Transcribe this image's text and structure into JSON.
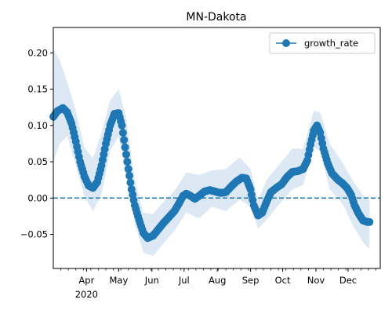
{
  "chart_data": {
    "type": "line",
    "title": "MN-Dakota",
    "xlabel": "",
    "ylabel": "",
    "xlim": [
      "2020-03-01",
      "2020-12-31"
    ],
    "ylim": [
      -0.097,
      0.235
    ],
    "y_ticks": [
      -0.05,
      0.0,
      0.05,
      0.1,
      0.15,
      0.2
    ],
    "y_tick_labels": [
      "−0.05",
      "0.00",
      "0.05",
      "0.10",
      "0.15",
      "0.20"
    ],
    "x_ticks": [
      {
        "date": "2020-04-01",
        "label": "Apr",
        "sublabel": "2020"
      },
      {
        "date": "2020-05-01",
        "label": "May",
        "sublabel": ""
      },
      {
        "date": "2020-06-01",
        "label": "Jun",
        "sublabel": ""
      },
      {
        "date": "2020-07-01",
        "label": "Jul",
        "sublabel": ""
      },
      {
        "date": "2020-08-01",
        "label": "Aug",
        "sublabel": ""
      },
      {
        "date": "2020-09-01",
        "label": "Sep",
        "sublabel": ""
      },
      {
        "date": "2020-10-01",
        "label": "Oct",
        "sublabel": ""
      },
      {
        "date": "2020-11-01",
        "label": "Nov",
        "sublabel": ""
      },
      {
        "date": "2020-12-01",
        "label": "Dec",
        "sublabel": ""
      }
    ],
    "legend": {
      "placement": "top-right",
      "entries": [
        "growth_rate"
      ]
    },
    "reference_line": {
      "y": 0.0,
      "style": "dashed"
    },
    "grid": false,
    "colors": {
      "series": "#1f77b4",
      "band": "#dce9f5"
    },
    "series": [
      {
        "name": "growth_rate",
        "points": [
          [
            "2020-03-01",
            0.112
          ],
          [
            "2020-03-05",
            0.12
          ],
          [
            "2020-03-10",
            0.124
          ],
          [
            "2020-03-14",
            0.118
          ],
          [
            "2020-03-18",
            0.103
          ],
          [
            "2020-03-22",
            0.078
          ],
          [
            "2020-03-26",
            0.05
          ],
          [
            "2020-03-30",
            0.03
          ],
          [
            "2020-04-03",
            0.017
          ],
          [
            "2020-04-07",
            0.014
          ],
          [
            "2020-04-11",
            0.022
          ],
          [
            "2020-04-15",
            0.045
          ],
          [
            "2020-04-19",
            0.075
          ],
          [
            "2020-04-23",
            0.1
          ],
          [
            "2020-04-27",
            0.116
          ],
          [
            "2020-05-01",
            0.117
          ],
          [
            "2020-05-04",
            0.1
          ],
          [
            "2020-05-07",
            0.07
          ],
          [
            "2020-05-10",
            0.04
          ],
          [
            "2020-05-13",
            0.012
          ],
          [
            "2020-05-16",
            -0.01
          ],
          [
            "2020-05-20",
            -0.03
          ],
          [
            "2020-05-24",
            -0.048
          ],
          [
            "2020-05-28",
            -0.055
          ],
          [
            "2020-06-02",
            -0.052
          ],
          [
            "2020-06-07",
            -0.043
          ],
          [
            "2020-06-12",
            -0.034
          ],
          [
            "2020-06-17",
            -0.026
          ],
          [
            "2020-06-22",
            -0.018
          ],
          [
            "2020-06-26",
            -0.008
          ],
          [
            "2020-06-30",
            0.003
          ],
          [
            "2020-07-03",
            0.006
          ],
          [
            "2020-07-07",
            0.003
          ],
          [
            "2020-07-11",
            -0.001
          ],
          [
            "2020-07-15",
            0.003
          ],
          [
            "2020-07-20",
            0.009
          ],
          [
            "2020-07-25",
            0.011
          ],
          [
            "2020-07-30",
            0.009
          ],
          [
            "2020-08-04",
            0.007
          ],
          [
            "2020-08-09",
            0.008
          ],
          [
            "2020-08-14",
            0.016
          ],
          [
            "2020-08-19",
            0.023
          ],
          [
            "2020-08-24",
            0.028
          ],
          [
            "2020-08-28",
            0.027
          ],
          [
            "2020-09-01",
            0.012
          ],
          [
            "2020-09-04",
            -0.01
          ],
          [
            "2020-09-08",
            -0.024
          ],
          [
            "2020-09-12",
            -0.02
          ],
          [
            "2020-09-16",
            -0.005
          ],
          [
            "2020-09-20",
            0.008
          ],
          [
            "2020-09-25",
            0.014
          ],
          [
            "2020-09-30",
            0.019
          ],
          [
            "2020-10-05",
            0.029
          ],
          [
            "2020-10-10",
            0.036
          ],
          [
            "2020-10-15",
            0.037
          ],
          [
            "2020-10-20",
            0.04
          ],
          [
            "2020-10-24",
            0.052
          ],
          [
            "2020-10-27",
            0.074
          ],
          [
            "2020-10-30",
            0.093
          ],
          [
            "2020-11-02",
            0.1
          ],
          [
            "2020-11-05",
            0.09
          ],
          [
            "2020-11-08",
            0.068
          ],
          [
            "2020-11-12",
            0.048
          ],
          [
            "2020-11-16",
            0.034
          ],
          [
            "2020-11-21",
            0.026
          ],
          [
            "2020-11-26",
            0.02
          ],
          [
            "2020-11-30",
            0.014
          ],
          [
            "2020-12-04",
            0.004
          ],
          [
            "2020-12-07",
            -0.01
          ],
          [
            "2020-12-11",
            -0.022
          ],
          [
            "2020-12-15",
            -0.031
          ],
          [
            "2020-12-19",
            -0.033
          ],
          [
            "2020-12-21",
            -0.033
          ]
        ]
      }
    ],
    "confidence_band": [
      [
        "2020-03-01",
        0.05,
        0.205
      ],
      [
        "2020-03-07",
        0.075,
        0.19
      ],
      [
        "2020-03-14",
        0.085,
        0.16
      ],
      [
        "2020-03-22",
        0.045,
        0.12
      ],
      [
        "2020-03-30",
        0.002,
        0.07
      ],
      [
        "2020-04-07",
        -0.018,
        0.055
      ],
      [
        "2020-04-15",
        0.005,
        0.09
      ],
      [
        "2020-04-23",
        0.065,
        0.135
      ],
      [
        "2020-05-01",
        0.085,
        0.15
      ],
      [
        "2020-05-08",
        0.03,
        0.11
      ],
      [
        "2020-05-16",
        -0.035,
        0.025
      ],
      [
        "2020-05-24",
        -0.075,
        -0.02
      ],
      [
        "2020-06-02",
        -0.08,
        -0.022
      ],
      [
        "2020-06-12",
        -0.062,
        -0.005
      ],
      [
        "2020-06-22",
        -0.045,
        0.01
      ],
      [
        "2020-07-03",
        -0.02,
        0.035
      ],
      [
        "2020-07-15",
        -0.028,
        0.032
      ],
      [
        "2020-07-27",
        -0.012,
        0.038
      ],
      [
        "2020-08-09",
        -0.018,
        0.04
      ],
      [
        "2020-08-22",
        -0.002,
        0.056
      ],
      [
        "2020-09-01",
        -0.012,
        0.04
      ],
      [
        "2020-09-08",
        -0.042,
        -0.003
      ],
      [
        "2020-09-16",
        -0.03,
        0.025
      ],
      [
        "2020-09-27",
        -0.01,
        0.045
      ],
      [
        "2020-10-10",
        0.012,
        0.068
      ],
      [
        "2020-10-20",
        0.018,
        0.068
      ],
      [
        "2020-10-30",
        0.07,
        0.12
      ],
      [
        "2020-11-05",
        0.065,
        0.118
      ],
      [
        "2020-11-14",
        0.012,
        0.075
      ],
      [
        "2020-11-26",
        -0.008,
        0.048
      ],
      [
        "2020-12-07",
        -0.042,
        0.02
      ],
      [
        "2020-12-17",
        -0.065,
        0.0
      ],
      [
        "2020-12-21",
        -0.07,
        -0.003
      ]
    ]
  }
}
